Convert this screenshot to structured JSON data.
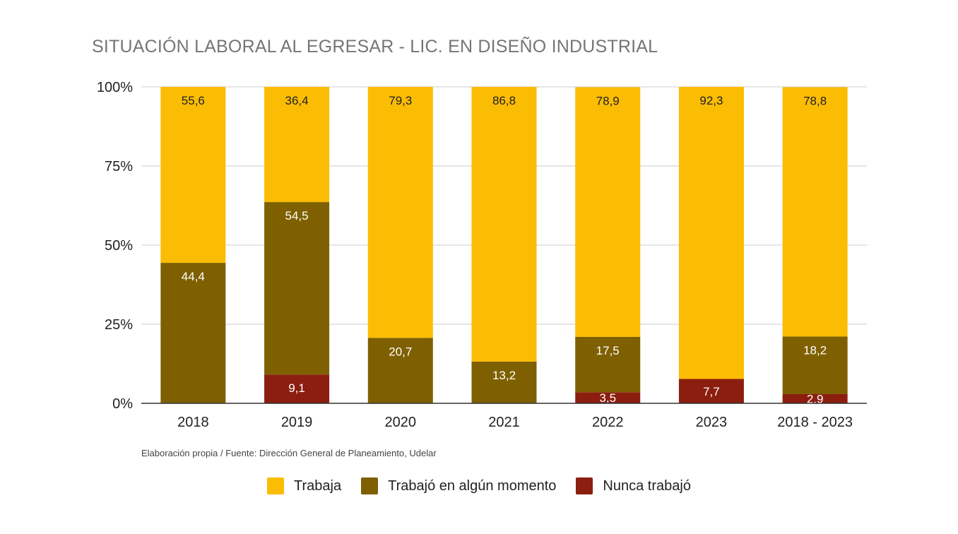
{
  "chart_data": {
    "type": "bar",
    "stacked": true,
    "title": "SITUACIÓN LABORAL AL EGRESAR - LIC. EN DISEÑO INDUSTRIAL",
    "xlabel": "",
    "ylabel": "",
    "ylim": [
      0,
      100
    ],
    "y_ticks": [
      "0%",
      "25%",
      "50%",
      "75%",
      "100%"
    ],
    "y_tick_values": [
      0,
      25,
      50,
      75,
      100
    ],
    "grid": true,
    "legend_position": "bottom",
    "categories": [
      "2018",
      "2019",
      "2020",
      "2021",
      "2022",
      "2023",
      "2018 - 2023"
    ],
    "series": [
      {
        "name": "Nunca trabajó",
        "color": "#8b1e0f",
        "values": [
          0,
          9.1,
          0,
          0,
          3.5,
          7.7,
          2.9
        ],
        "labels": [
          "",
          "9,1",
          "",
          "",
          "3,5",
          "7,7",
          "2,9"
        ]
      },
      {
        "name": "Trabajó en algún momento",
        "color": "#7f6000",
        "values": [
          44.4,
          54.5,
          20.7,
          13.2,
          17.5,
          0,
          18.2
        ],
        "labels": [
          "44,4",
          "54,5",
          "20,7",
          "13,2",
          "17,5",
          "",
          "18,2"
        ]
      },
      {
        "name": "Trabaja",
        "color": "#fbbc04",
        "values": [
          55.6,
          36.4,
          79.3,
          86.8,
          78.9,
          92.3,
          78.8
        ],
        "labels": [
          "55,6",
          "36,4",
          "79,3",
          "86,8",
          "78,9",
          "92,3",
          "78,8"
        ]
      }
    ],
    "legend_order": [
      "Trabaja",
      "Trabajó en algún momento",
      "Nunca trabajó"
    ],
    "note": "Elaboración propia / Fuente: Dirección General de Planeamiento, Udelar"
  }
}
